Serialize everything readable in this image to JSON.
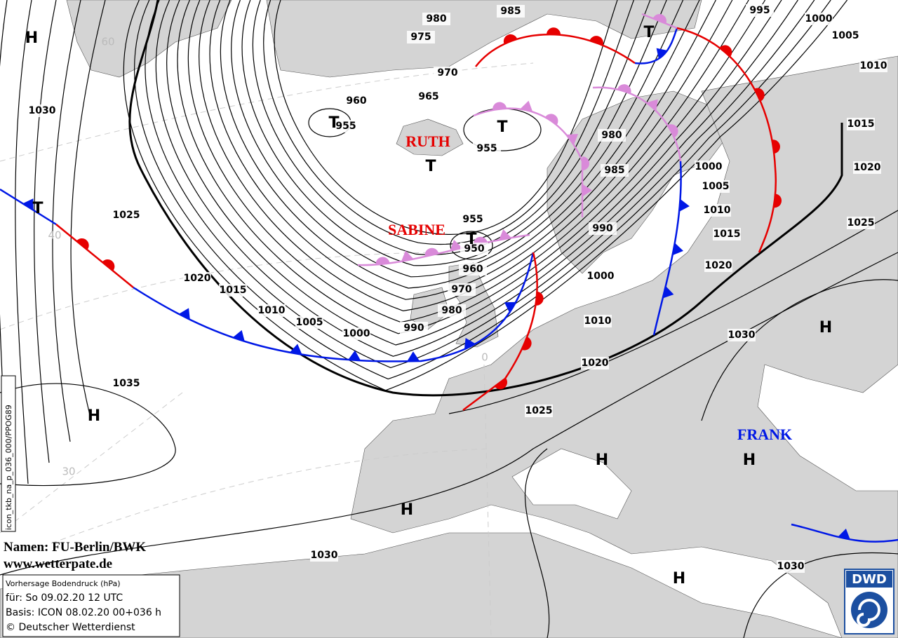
{
  "isobar_labels": [
    980,
    985,
    995,
    1000,
    1005,
    1010,
    975,
    970,
    965,
    960,
    955,
    955,
    1030,
    980,
    985,
    1000,
    1005,
    1010,
    1015,
    1015,
    1020,
    1025,
    1025,
    990,
    955,
    950,
    960,
    970,
    980,
    990,
    1000,
    1005,
    1010,
    1015,
    1020,
    1000,
    1010,
    1020,
    1030,
    1020,
    1025,
    1035,
    1030,
    1030
  ],
  "pressure_systems": [
    "H",
    "T",
    "T",
    "T",
    "T",
    "T",
    "T",
    "H",
    "H",
    "H",
    "H",
    "H",
    "H"
  ],
  "storm_names": [
    "RUTH",
    "SABINE",
    "FRANK"
  ],
  "grid_labels": [
    "60",
    "40",
    "30",
    "0"
  ],
  "credits": {
    "names": "Namen: FU-Berlin/BWK",
    "url": "www.wetterpate.de"
  },
  "info_box": {
    "lines": [
      "Vorhersage Bodendruck (hPa)",
      "für:  So 09.02.20  12 UTC",
      "Basis: ICON  08.02.20 00+036 h",
      "© Deutscher Wetterdienst"
    ]
  },
  "side_label": "icon_tkb_na_p_036_000/PPOG89",
  "logo": "DWD"
}
